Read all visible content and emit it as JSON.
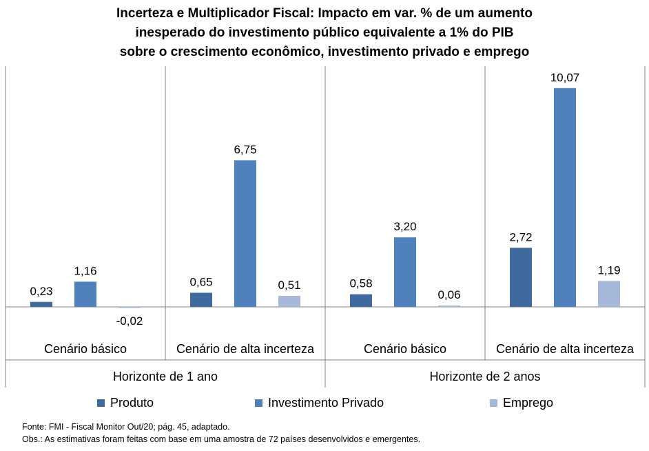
{
  "chart_data": {
    "type": "bar",
    "title_lines": [
      "Incerteza e Multiplicador Fiscal: Impacto em var. % de um aumento",
      "inesperado do investimento público equivalente a 1% do PIB",
      "sobre o crescimento econômico, investimento privado e emprego"
    ],
    "groups": [
      {
        "label": "Horizonte de 1 ano",
        "categories": [
          "Cenário básico",
          "Cenário de alta incerteza"
        ]
      },
      {
        "label": "Horizonte de 2 anos",
        "categories": [
          "Cenário básico",
          "Cenário de alta incerteza"
        ]
      }
    ],
    "series": [
      {
        "name": "Produto",
        "color": "#3f6a9d",
        "values": [
          0.23,
          0.65,
          0.58,
          2.72
        ],
        "labels": [
          "0,23",
          "0,65",
          "0,58",
          "2,72"
        ]
      },
      {
        "name": "Investimento Privado",
        "color": "#4f81bd",
        "values": [
          1.16,
          6.75,
          3.2,
          10.07
        ],
        "labels": [
          "1,16",
          "6,75",
          "3,20",
          "10,07"
        ]
      },
      {
        "name": "Emprego",
        "color": "#a5b8d9",
        "values": [
          -0.02,
          0.51,
          0.06,
          1.19
        ],
        "labels": [
          "-0,02",
          "0,51",
          "0,06",
          "1,19"
        ]
      }
    ],
    "ylim": [
      -1.4,
      11.6
    ],
    "grid": false,
    "legend_position": "bottom"
  },
  "notes": {
    "source": "Fonte: FMI - Fiscal Monitor Out/20; pág. 45, adaptado.",
    "obs": "Obs.: As estimativas foram feitas com base em uma amostra de 72 países desenvolvidos e emergentes."
  }
}
